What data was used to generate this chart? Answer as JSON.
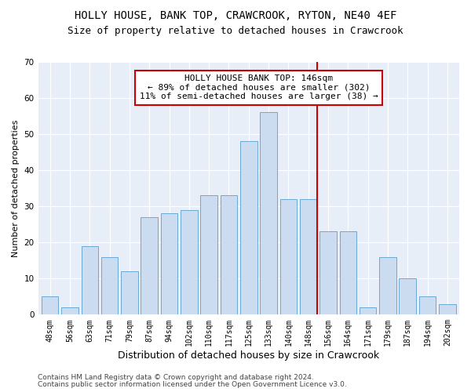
{
  "title1": "HOLLY HOUSE, BANK TOP, CRAWCROOK, RYTON, NE40 4EF",
  "title2": "Size of property relative to detached houses in Crawcrook",
  "xlabel": "Distribution of detached houses by size in Crawcrook",
  "ylabel": "Number of detached properties",
  "bar_labels": [
    "48sqm",
    "56sqm",
    "63sqm",
    "71sqm",
    "79sqm",
    "87sqm",
    "94sqm",
    "102sqm",
    "110sqm",
    "117sqm",
    "125sqm",
    "133sqm",
    "140sqm",
    "148sqm",
    "156sqm",
    "164sqm",
    "171sqm",
    "179sqm",
    "187sqm",
    "194sqm",
    "202sqm"
  ],
  "bar_heights": [
    5,
    2,
    19,
    16,
    12,
    27,
    28,
    29,
    33,
    33,
    48,
    56,
    32,
    32,
    23,
    23,
    2,
    16,
    10,
    5,
    3
  ],
  "bar_color": "#ccdcf0",
  "bar_edge_color": "#6aaad4",
  "vline_index": 13.45,
  "vline_color": "#cc0000",
  "annotation_text": "HOLLY HOUSE BANK TOP: 146sqm\n← 89% of detached houses are smaller (302)\n11% of semi-detached houses are larger (38) →",
  "annotation_box_color": "#cc0000",
  "annotation_facecolor": "white",
  "ylim": [
    0,
    70
  ],
  "yticks": [
    0,
    10,
    20,
    30,
    40,
    50,
    60,
    70
  ],
  "background_color": "#e8eef7",
  "grid_color": "white",
  "footer1": "Contains HM Land Registry data © Crown copyright and database right 2024.",
  "footer2": "Contains public sector information licensed under the Open Government Licence v3.0.",
  "title1_fontsize": 10,
  "title2_fontsize": 9,
  "xlabel_fontsize": 9,
  "ylabel_fontsize": 8,
  "tick_fontsize": 7,
  "annotation_fontsize": 8,
  "footer_fontsize": 6.5
}
